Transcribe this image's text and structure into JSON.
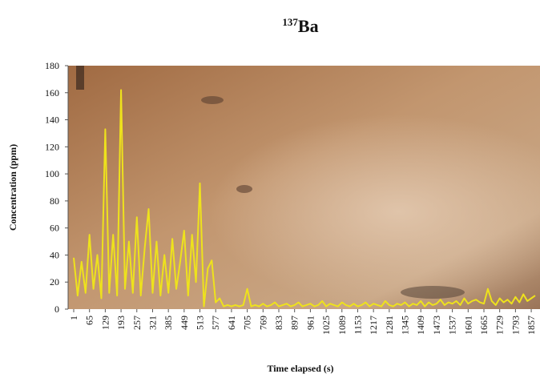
{
  "chart_data": {
    "type": "line",
    "title_superscript": "137",
    "title": "Ba",
    "y_label": "Concentration (ppm)",
    "x_label": "Time elapsed (s)",
    "color": "#eee21c",
    "x": [
      1,
      17,
      33,
      49,
      65,
      81,
      97,
      113,
      129,
      145,
      161,
      177,
      193,
      209,
      225,
      241,
      257,
      273,
      289,
      305,
      321,
      337,
      353,
      369,
      385,
      401,
      417,
      433,
      449,
      465,
      481,
      497,
      513,
      529,
      545,
      561,
      577,
      593,
      609,
      625,
      641,
      657,
      673,
      689,
      705,
      721,
      737,
      753,
      769,
      785,
      801,
      817,
      833,
      849,
      865,
      881,
      897,
      913,
      929,
      945,
      961,
      977,
      993,
      1009,
      1025,
      1041,
      1057,
      1073,
      1089,
      1105,
      1121,
      1137,
      1153,
      1169,
      1185,
      1201,
      1217,
      1233,
      1249,
      1265,
      1281,
      1297,
      1313,
      1329,
      1345,
      1361,
      1377,
      1393,
      1409,
      1425,
      1441,
      1457,
      1473,
      1489,
      1505,
      1521,
      1537,
      1553,
      1569,
      1585,
      1601,
      1617,
      1633,
      1649,
      1665,
      1681,
      1697,
      1713,
      1729,
      1745,
      1761,
      1777,
      1793,
      1809,
      1825,
      1841,
      1857,
      1873
    ],
    "values": [
      38,
      10,
      35,
      12,
      55,
      15,
      40,
      8,
      133,
      12,
      55,
      10,
      162,
      15,
      50,
      12,
      68,
      10,
      45,
      74,
      12,
      50,
      10,
      40,
      12,
      52,
      15,
      35,
      58,
      10,
      55,
      20,
      93,
      2,
      30,
      36,
      5,
      8,
      2,
      3,
      2,
      3,
      2,
      3,
      15,
      2,
      3,
      2,
      4,
      2,
      3,
      5,
      2,
      3,
      4,
      2,
      3,
      5,
      2,
      3,
      4,
      2,
      3,
      6,
      2,
      4,
      3,
      2,
      5,
      3,
      2,
      4,
      2,
      3,
      5,
      2,
      4,
      3,
      2,
      6,
      3,
      2,
      4,
      3,
      5,
      2,
      4,
      3,
      6,
      2,
      5,
      3,
      4,
      7,
      3,
      5,
      4,
      6,
      3,
      8,
      4,
      6,
      7,
      5,
      4,
      15,
      6,
      3,
      8,
      5,
      7,
      4,
      9,
      5,
      11,
      6,
      8,
      10
    ],
    "xlim": [
      1,
      1873
    ],
    "xticks": [
      1,
      65,
      129,
      193,
      257,
      321,
      385,
      449,
      513,
      577,
      641,
      705,
      769,
      833,
      897,
      961,
      1025,
      1089,
      1153,
      1217,
      1281,
      1345,
      1409,
      1473,
      1537,
      1601,
      1665,
      1729,
      1793,
      1857
    ],
    "ylim": [
      0,
      180
    ],
    "yticks": [
      0,
      20,
      40,
      60,
      80,
      100,
      120,
      140,
      160,
      180
    ]
  }
}
